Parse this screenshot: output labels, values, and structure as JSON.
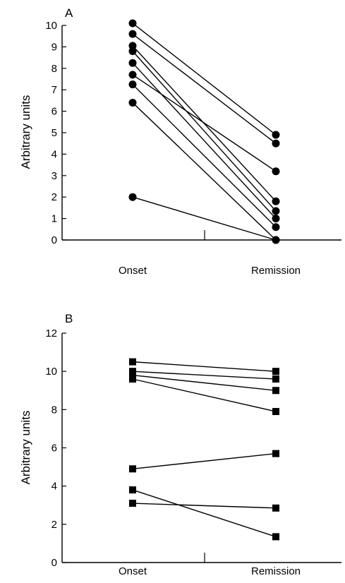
{
  "chart_data": [
    {
      "type": "line",
      "panel_label": "A",
      "categories": [
        "Onset",
        "Remission"
      ],
      "ylabel": "Arbitrary units",
      "ylim": [
        0,
        10
      ],
      "yticks": [
        "0",
        "1",
        "2",
        "3",
        "4",
        "5",
        "6",
        "7",
        "8",
        "9",
        "10"
      ],
      "marker": "circle",
      "series": [
        {
          "values": [
            10.1,
            4.9
          ]
        },
        {
          "values": [
            9.6,
            4.5
          ]
        },
        {
          "values": [
            9.05,
            1.8
          ]
        },
        {
          "values": [
            8.8,
            1.35
          ]
        },
        {
          "values": [
            8.25,
            1.0
          ]
        },
        {
          "values": [
            7.7,
            3.2
          ]
        },
        {
          "values": [
            7.25,
            0.6
          ]
        },
        {
          "values": [
            6.4,
            0.0
          ]
        },
        {
          "values": [
            2.0,
            0.0
          ]
        }
      ]
    },
    {
      "type": "line",
      "panel_label": "B",
      "categories": [
        "Onset",
        "Remission"
      ],
      "ylabel": "Arbitrary units",
      "ylim": [
        0,
        12
      ],
      "yticks": [
        "0",
        "2",
        "4",
        "6",
        "8",
        "10",
        "12"
      ],
      "marker": "square",
      "series": [
        {
          "values": [
            10.5,
            10.0
          ]
        },
        {
          "values": [
            10.0,
            9.6
          ]
        },
        {
          "values": [
            9.8,
            9.0
          ]
        },
        {
          "values": [
            9.6,
            7.9
          ]
        },
        {
          "values": [
            4.9,
            5.7
          ]
        },
        {
          "values": [
            3.8,
            1.35
          ]
        },
        {
          "values": [
            3.1,
            2.85
          ]
        }
      ]
    }
  ]
}
